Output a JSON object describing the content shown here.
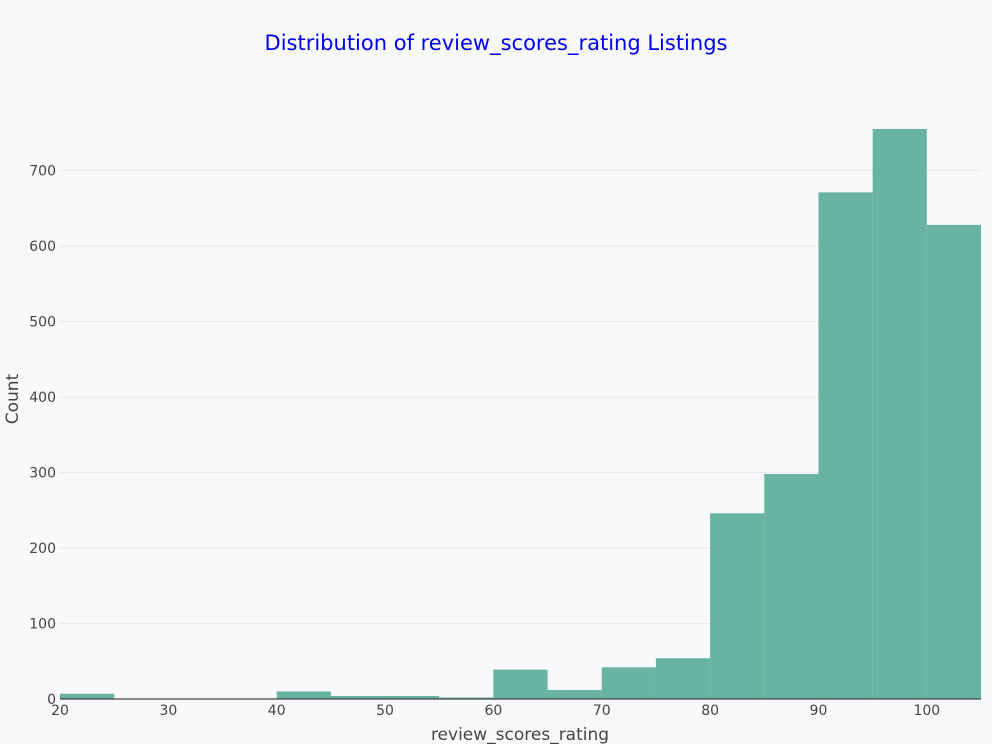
{
  "chart_data": {
    "type": "bar",
    "title": "Distribution of review_scores_rating Listings",
    "xlabel": "review_scores_rating",
    "ylabel": "Count",
    "bins": [
      {
        "x0": 20,
        "x1": 25,
        "count": 7
      },
      {
        "x0": 25,
        "x1": 30,
        "count": 0
      },
      {
        "x0": 30,
        "x1": 35,
        "count": 0
      },
      {
        "x0": 35,
        "x1": 40,
        "count": 0
      },
      {
        "x0": 40,
        "x1": 45,
        "count": 10
      },
      {
        "x0": 45,
        "x1": 50,
        "count": 4
      },
      {
        "x0": 50,
        "x1": 55,
        "count": 4
      },
      {
        "x0": 55,
        "x1": 60,
        "count": 2
      },
      {
        "x0": 60,
        "x1": 65,
        "count": 39
      },
      {
        "x0": 65,
        "x1": 70,
        "count": 12
      },
      {
        "x0": 70,
        "x1": 75,
        "count": 42
      },
      {
        "x0": 75,
        "x1": 80,
        "count": 54
      },
      {
        "x0": 80,
        "x1": 85,
        "count": 246
      },
      {
        "x0": 85,
        "x1": 90,
        "count": 298
      },
      {
        "x0": 90,
        "x1": 95,
        "count": 671
      },
      {
        "x0": 95,
        "x1": 100,
        "count": 755
      },
      {
        "x0": 100,
        "x1": 105,
        "count": 628
      }
    ],
    "xlim": [
      20,
      105
    ],
    "ylim": [
      0,
      800
    ],
    "x_ticks": [
      20,
      30,
      40,
      50,
      60,
      70,
      80,
      90,
      100
    ],
    "y_ticks": [
      0,
      100,
      200,
      300,
      400,
      500,
      600,
      700
    ],
    "grid": true,
    "colors": {
      "bar": "#69b3a2",
      "title": "#0000ee",
      "grid": "#e6e9ee",
      "axis": "#444444",
      "background": "#f7f9fb"
    }
  }
}
